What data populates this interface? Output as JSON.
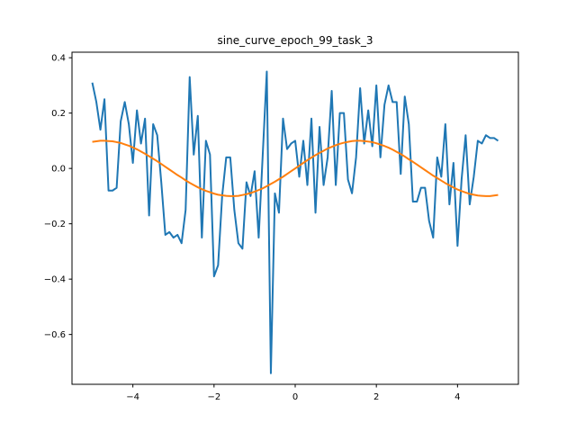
{
  "chart_data": {
    "type": "line",
    "title": "sine_curve_epoch_99_task_3",
    "xlabel": "",
    "ylabel": "",
    "xlim": [
      -5.5,
      5.5
    ],
    "ylim": [
      -0.78,
      0.42
    ],
    "grid": false,
    "x_ticks": [
      -4,
      -2,
      0,
      2,
      4
    ],
    "x_tick_labels": [
      "−4",
      "−2",
      "0",
      "2",
      "4"
    ],
    "y_ticks": [
      0.4,
      0.2,
      0.0,
      -0.2,
      -0.4,
      -0.6
    ],
    "y_tick_labels": [
      "0.4",
      "0.2",
      "0.0",
      "−0.2",
      "−0.4",
      "−0.6"
    ],
    "series": [
      {
        "color": "#1f77b4",
        "x": [
          -5.0,
          -4.9,
          -4.8,
          -4.7,
          -4.6,
          -4.5,
          -4.4,
          -4.3,
          -4.2,
          -4.1,
          -4.0,
          -3.9,
          -3.8,
          -3.7,
          -3.6,
          -3.5,
          -3.4,
          -3.3,
          -3.2,
          -3.1,
          -3.0,
          -2.9,
          -2.8,
          -2.7,
          -2.6,
          -2.5,
          -2.4,
          -2.3,
          -2.2,
          -2.1,
          -2.0,
          -1.9,
          -1.8,
          -1.7,
          -1.6,
          -1.5,
          -1.4,
          -1.3,
          -1.2,
          -1.1,
          -1.0,
          -0.9,
          -0.8,
          -0.7,
          -0.6,
          -0.5,
          -0.4,
          -0.3,
          -0.2,
          -0.1,
          0.0,
          0.1,
          0.2,
          0.3,
          0.4,
          0.5,
          0.6,
          0.7,
          0.8,
          0.9,
          1.0,
          1.1,
          1.2,
          1.3,
          1.4,
          1.5,
          1.6,
          1.7,
          1.8,
          1.9,
          2.0,
          2.1,
          2.2,
          2.3,
          2.4,
          2.5,
          2.6,
          2.7,
          2.8,
          2.9,
          3.0,
          3.1,
          3.2,
          3.3,
          3.4,
          3.5,
          3.6,
          3.7,
          3.8,
          3.9,
          4.0,
          4.1,
          4.2,
          4.3,
          4.4,
          4.5,
          4.6,
          4.7,
          4.8,
          4.9,
          5.0
        ],
        "y": [
          0.31,
          0.24,
          0.14,
          0.25,
          -0.08,
          -0.08,
          -0.07,
          0.17,
          0.24,
          0.16,
          0.02,
          0.21,
          0.09,
          0.18,
          -0.17,
          0.16,
          0.12,
          -0.05,
          -0.24,
          -0.23,
          -0.25,
          -0.24,
          -0.27,
          -0.15,
          0.33,
          0.05,
          0.19,
          -0.25,
          0.1,
          0.05,
          -0.39,
          -0.35,
          -0.1,
          0.04,
          0.04,
          -0.15,
          -0.27,
          -0.29,
          -0.05,
          -0.1,
          -0.01,
          -0.25,
          0.05,
          0.35,
          -0.74,
          -0.09,
          -0.16,
          0.18,
          0.07,
          0.09,
          0.1,
          -0.03,
          0.1,
          -0.06,
          0.18,
          -0.16,
          0.15,
          -0.06,
          0.04,
          0.28,
          -0.06,
          0.2,
          0.2,
          -0.04,
          -0.09,
          0.04,
          0.29,
          0.09,
          0.21,
          0.08,
          0.3,
          0.04,
          0.23,
          0.3,
          0.24,
          0.24,
          -0.02,
          0.26,
          0.16,
          -0.12,
          -0.12,
          -0.07,
          -0.07,
          -0.19,
          -0.25,
          0.04,
          -0.03,
          0.16,
          -0.13,
          0.02,
          -0.28,
          -0.04,
          0.12,
          -0.13,
          -0.03,
          0.1,
          0.09,
          0.12,
          0.11,
          0.11,
          0.1
        ]
      },
      {
        "color": "#ff7f0e",
        "x": [
          -5.0,
          -4.9,
          -4.8,
          -4.7,
          -4.6,
          -4.5,
          -4.4,
          -4.3,
          -4.2,
          -4.1,
          -4.0,
          -3.9,
          -3.8,
          -3.7,
          -3.6,
          -3.5,
          -3.4,
          -3.3,
          -3.2,
          -3.1,
          -3.0,
          -2.9,
          -2.8,
          -2.7,
          -2.6,
          -2.5,
          -2.4,
          -2.3,
          -2.2,
          -2.1,
          -2.0,
          -1.9,
          -1.8,
          -1.7,
          -1.6,
          -1.5,
          -1.4,
          -1.3,
          -1.2,
          -1.1,
          -1.0,
          -0.9,
          -0.8,
          -0.7,
          -0.6,
          -0.5,
          -0.4,
          -0.3,
          -0.2,
          -0.1,
          0.0,
          0.1,
          0.2,
          0.3,
          0.4,
          0.5,
          0.6,
          0.7,
          0.8,
          0.9,
          1.0,
          1.1,
          1.2,
          1.3,
          1.4,
          1.5,
          1.6,
          1.7,
          1.8,
          1.9,
          2.0,
          2.1,
          2.2,
          2.3,
          2.4,
          2.5,
          2.6,
          2.7,
          2.8,
          2.9,
          3.0,
          3.1,
          3.2,
          3.3,
          3.4,
          3.5,
          3.6,
          3.7,
          3.8,
          3.9,
          4.0,
          4.1,
          4.2,
          4.3,
          4.4,
          4.5,
          4.6,
          4.7,
          4.8,
          4.9,
          5.0
        ],
        "y": [
          0.096,
          0.098,
          0.1,
          0.1,
          0.099,
          0.098,
          0.095,
          0.092,
          0.087,
          0.082,
          0.076,
          0.069,
          0.061,
          0.053,
          0.044,
          0.035,
          0.026,
          0.016,
          0.006,
          -0.004,
          -0.014,
          -0.024,
          -0.033,
          -0.043,
          -0.052,
          -0.06,
          -0.068,
          -0.075,
          -0.081,
          -0.086,
          -0.091,
          -0.095,
          -0.097,
          -0.099,
          -0.1,
          -0.1,
          -0.099,
          -0.096,
          -0.093,
          -0.089,
          -0.084,
          -0.078,
          -0.072,
          -0.064,
          -0.056,
          -0.048,
          -0.039,
          -0.03,
          -0.02,
          -0.01,
          0.0,
          0.01,
          0.02,
          0.03,
          0.039,
          0.048,
          0.056,
          0.064,
          0.072,
          0.078,
          0.084,
          0.089,
          0.093,
          0.096,
          0.099,
          0.1,
          0.1,
          0.099,
          0.097,
          0.095,
          0.091,
          0.086,
          0.081,
          0.075,
          0.068,
          0.06,
          0.052,
          0.043,
          0.033,
          0.024,
          0.014,
          0.004,
          -0.006,
          -0.016,
          -0.026,
          -0.035,
          -0.044,
          -0.053,
          -0.061,
          -0.069,
          -0.076,
          -0.082,
          -0.087,
          -0.092,
          -0.095,
          -0.098,
          -0.099,
          -0.1,
          -0.1,
          -0.098,
          -0.096
        ]
      }
    ]
  }
}
